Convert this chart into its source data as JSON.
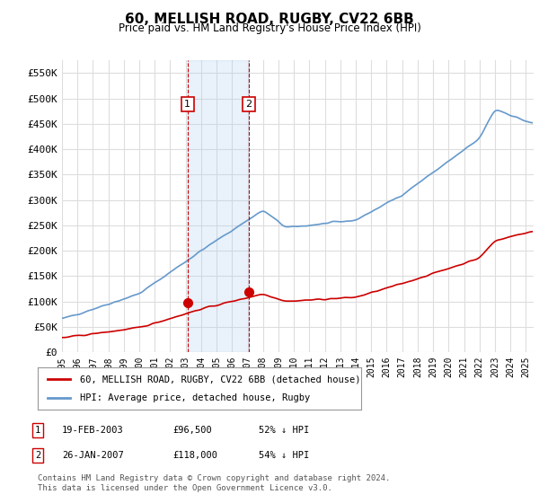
{
  "title": "60, MELLISH ROAD, RUGBY, CV22 6BB",
  "subtitle": "Price paid vs. HM Land Registry's House Price Index (HPI)",
  "ylabel_ticks": [
    "£0",
    "£50K",
    "£100K",
    "£150K",
    "£200K",
    "£250K",
    "£300K",
    "£350K",
    "£400K",
    "£450K",
    "£500K",
    "£550K"
  ],
  "ytick_values": [
    0,
    50000,
    100000,
    150000,
    200000,
    250000,
    300000,
    350000,
    400000,
    450000,
    500000,
    550000
  ],
  "ylim": [
    0,
    575000
  ],
  "xlim_start": 1995.0,
  "xlim_end": 2025.5,
  "transaction1": {
    "date_num": 2003.12,
    "price": 96500,
    "label": "1"
  },
  "transaction2": {
    "date_num": 2007.07,
    "price": 118000,
    "label": "2"
  },
  "vline1_x": 2003.12,
  "vline2_x": 2007.07,
  "shade_x1": 2003.12,
  "shade_x2": 2007.07,
  "legend_line1_label": "60, MELLISH ROAD, RUGBY, CV22 6BB (detached house)",
  "legend_line2_label": "HPI: Average price, detached house, Rugby",
  "table_rows": [
    {
      "num": "1",
      "date": "19-FEB-2003",
      "price": "£96,500",
      "hpi": "52% ↓ HPI"
    },
    {
      "num": "2",
      "date": "26-JAN-2007",
      "price": "£118,000",
      "hpi": "54% ↓ HPI"
    }
  ],
  "footnote": "Contains HM Land Registry data © Crown copyright and database right 2024.\nThis data is licensed under the Open Government Licence v3.0.",
  "red_line_color": "#cc0000",
  "blue_line_color": "#6699cc",
  "shade_color": "#aaccee",
  "vline_color": "#cc0000",
  "grid_color": "#dddddd",
  "background_color": "#ffffff"
}
